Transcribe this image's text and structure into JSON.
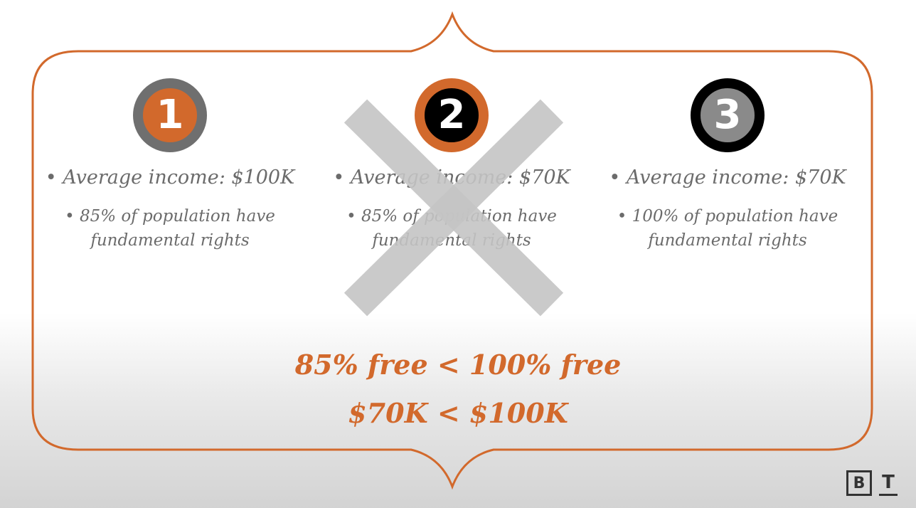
{
  "colors": {
    "accent": "#d2692c",
    "gray": "#6f6f6f",
    "text_gray": "#6b6b6b",
    "x_mark": "#c9c9c9"
  },
  "options": [
    {
      "number": "1",
      "income": "• Average income: $100K",
      "population_line1": "• 85% of population have",
      "population_line2": "fundamental rights",
      "crossed_out": false
    },
    {
      "number": "2",
      "income": "• Average income: $70K",
      "population_line1": "• 85% of population have",
      "population_line2": "fundamental rights",
      "crossed_out": true
    },
    {
      "number": "3",
      "income": "• Average income: $70K",
      "population_line1": "• 100% of population have",
      "population_line2": "fundamental rights",
      "crossed_out": false
    }
  ],
  "comparisons": {
    "freedom": "85% free < 100% free",
    "income": "$70K < $100K"
  },
  "logo": {
    "letter1": "B",
    "letter2": "T"
  }
}
